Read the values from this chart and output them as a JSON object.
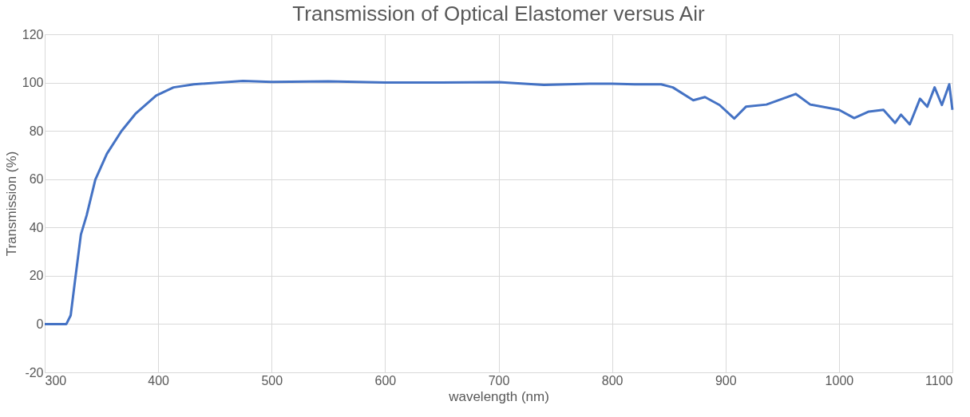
{
  "chart_data": {
    "type": "line",
    "title": "Transmission of Optical Elastomer versus Air",
    "xlabel": "wavelength (nm)",
    "ylabel": "Transmission (%)",
    "x": [
      300,
      319.1,
      322.9,
      326.8,
      331.9,
      337,
      344.6,
      354.8,
      367.6,
      380.4,
      398.2,
      413.5,
      431.4,
      474.7,
      500,
      550,
      600,
      650,
      700,
      740,
      780,
      800,
      820.1,
      843.3,
      853.6,
      871.6,
      881.9,
      894.8,
      907.7,
      918,
      936.1,
      961.9,
      974.7,
      1000,
      1013.4,
      1026.3,
      1039.2,
      1049.5,
      1054.6,
      1062.4,
      1071.4,
      1077.8,
      1084.3,
      1090.7,
      1097.2,
      1100
    ],
    "series": [
      {
        "color": "#4472c4",
        "values": [
          0,
          0,
          3.6,
          18.3,
          37.1,
          45.1,
          59.8,
          70.5,
          79.9,
          87.3,
          94.6,
          98,
          99.3,
          100.7,
          100.3,
          100.5,
          100,
          100,
          100.2,
          99,
          99.5,
          99.5,
          99.3,
          99.3,
          98,
          92.7,
          94,
          90.7,
          85.1,
          90,
          90.9,
          95.3,
          90.9,
          88.7,
          85.3,
          88,
          88.7,
          83.3,
          86.7,
          82.7,
          93.3,
          90,
          98,
          90.7,
          99.3,
          88.7
        ]
      }
    ],
    "xlim": [
      300,
      1100
    ],
    "xticks": [
      300,
      400,
      500,
      600,
      700,
      800,
      900,
      1000,
      1100
    ],
    "ylim": [
      -20,
      120
    ],
    "yticks": [
      -20,
      0,
      20,
      40,
      60,
      80,
      100,
      120
    ],
    "grid": true,
    "marker": "none",
    "line_style": "solid"
  }
}
